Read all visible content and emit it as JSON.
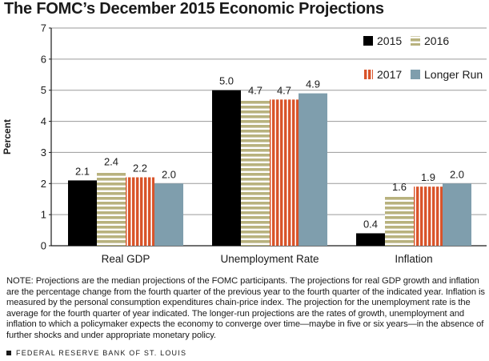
{
  "title": "The FOMC’s December 2015 Economic Projections",
  "chart_data": {
    "type": "bar",
    "title": "The FOMC’s December 2015 Economic Projections",
    "ylabel": "Percent",
    "xlabel": "",
    "ylim": [
      0,
      7
    ],
    "yticks": [
      0,
      1,
      2,
      3,
      4,
      5,
      6,
      7
    ],
    "grid": true,
    "legend_position": "top-right",
    "categories": [
      "Real GDP",
      "Unemployment Rate",
      "Inflation"
    ],
    "series": [
      {
        "name": "2015",
        "values": [
          2.1,
          5.0,
          0.4
        ],
        "color": "#000000",
        "pattern": "solid"
      },
      {
        "name": "2016",
        "values": [
          2.4,
          4.7,
          1.6
        ],
        "color": "#b8b27e",
        "pattern": "horizontal-stripes"
      },
      {
        "name": "2017",
        "values": [
          2.2,
          4.7,
          1.9
        ],
        "color": "#d9542a",
        "pattern": "vertical-stripes"
      },
      {
        "name": "Longer Run",
        "values": [
          2.0,
          4.9,
          2.0
        ],
        "color": "#7f9ead",
        "pattern": "solid"
      }
    ],
    "data_labels": [
      [
        "2.1",
        "5.0",
        "0.4"
      ],
      [
        "2.4",
        "4.7",
        "1.6"
      ],
      [
        "2.2",
        "4.7",
        "1.9"
      ],
      [
        "2.0",
        "4.9",
        "2.0"
      ]
    ]
  },
  "note": "NOTE: Projections are the median projections of the FOMC participants. The projections for real GDP growth and inflation are the percentage change from the fourth quarter of the previous year to the fourth quarter of the indicated year. Inflation is measured by the personal consumption expenditures chain-price index. The projection for the unemployment rate is the average for the fourth quarter of year indicated. The longer-run projections are the rates of growth, unemployment and inflation to which a policymaker expects the economy to converge over time—maybe in five or six years—in the absence of further shocks and under appropriate monetary policy.",
  "footer": "FEDERAL RESERVE BANK OF ST. LOUIS"
}
